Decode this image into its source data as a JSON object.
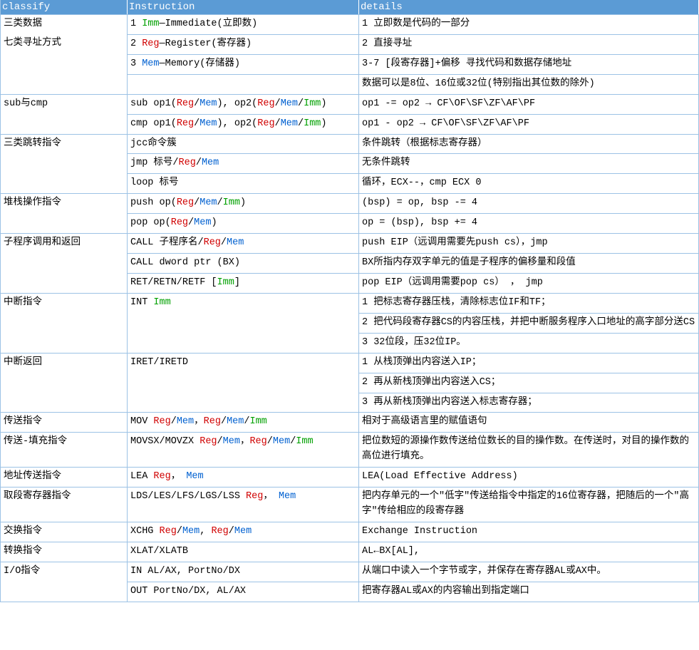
{
  "header": {
    "c1": "classify",
    "c2": "Instruction",
    "c3": "details"
  },
  "categories": {
    "three_data": "三类数据",
    "seven_addr": "七类寻址方式",
    "sub_cmp": "sub与cmp",
    "three_jump": "三类跳转指令",
    "stack_op": "堆栈操作指令",
    "call_ret": "子程序调用和返回",
    "int_instr": "中断指令",
    "int_ret": "中断返回",
    "mov_instr": "传送指令",
    "mov_fill": "传送-填充指令",
    "addr_mov": "地址传送指令",
    "seg_reg": "取段寄存器指令",
    "xchg": "交换指令",
    "xlat": "转换指令",
    "io": "I/O指令"
  },
  "rows": {
    "r1": {
      "n": "1 ",
      "kw": "Imm",
      "txt": "—Immediate(立即数)",
      "d": "1 立即数是代码的一部分"
    },
    "r2": {
      "n": "2 ",
      "kw": "Reg",
      "txt": "—Register(寄存器)",
      "d": "2 直接寻址"
    },
    "r3": {
      "n": "3 ",
      "kw": "Mem",
      "txt": "—Memory(存储器)",
      "d": "3-7 [段寄存器]+偏移 寻找代码和数据存储地址"
    },
    "r4": {
      "d": "数据可以是8位、16位或32位(特别指出其位数的除外)"
    },
    "r5": {
      "p1": "sub op1(",
      "p2": "), op2(",
      "p3": ")",
      "d": "op1 -= op2 → CF\\OF\\SF\\ZF\\AF\\PF"
    },
    "r6": {
      "p1": "cmp op1(",
      "p2": "), op2(",
      "p3": ")",
      "d": "op1 -  op2 → CF\\OF\\SF\\ZF\\AF\\PF"
    },
    "r7": {
      "i": "jcc命令簇",
      "d": "条件跳转（根据标志寄存器）"
    },
    "r8": {
      "p1": "jmp 标号/",
      "d": "无条件跳转"
    },
    "r9": {
      "i": "loop 标号",
      "d": "循环，ECX--，cmp ECX 0"
    },
    "r10": {
      "p1": "push op(",
      "p2": ")",
      "d": "(bsp) = op, bsp -= 4"
    },
    "r11": {
      "p1": "pop op(",
      "p2": ")",
      "d": "op = (bsp), bsp += 4"
    },
    "r12": {
      "p1": "CALL 子程序名/",
      "d": "push EIP（远调用需要先push cs），jmp"
    },
    "r13": {
      "i": "CALL  dword ptr (BX)",
      "d": "BX所指内存双字单元的值是子程序的偏移量和段值"
    },
    "r14": {
      "p1": "RET/RETN/RETF [",
      "p2": "]",
      "kw": "Imm",
      "d": "pop  EIP（远调用需要pop cs） ，  jmp"
    },
    "r15": {
      "p1": "INT ",
      "kw": "Imm",
      "d": "1 把标志寄存器压栈，清除标志位IF和TF；"
    },
    "r16": {
      "d": "2 把代码段寄存器CS的内容压栈，并把中断服务程序入口地址的高字部分送CS"
    },
    "r17": {
      "d": "3 32位段，压32位IP。"
    },
    "r18": {
      "i": "IRET/IRETD",
      "d": "1 从栈顶弹出内容送入IP；"
    },
    "r19": {
      "d": "2 再从新栈顶弹出内容送入CS；"
    },
    "r20": {
      "d": "3 再从新栈顶弹出内容送入标志寄存器；"
    },
    "r21": {
      "p1": "MOV  ",
      "c": "，",
      "d": "相对于高级语言里的赋值语句"
    },
    "r22": {
      "p1": "MOVSX/MOVZX ",
      "c": "，",
      "d": "把位数短的源操作数传送给位数长的目的操作数。在传送时，对目的操作数的高位进行填充。"
    },
    "r23": {
      "p1": "LEA  ",
      "c": "，",
      "d": "LEA(Load Effective Address)"
    },
    "r24": {
      "p1": "LDS/LES/LFS/LGS/LSS  ",
      "c": "，",
      "d": "把内存单元的一个\"低字\"传送给指令中指定的16位寄存器，把随后的一个\"高字\"传给相应的段寄存器"
    },
    "r25": {
      "p1": "XCHG   ",
      "c": ", ",
      "d": "Exchange Instruction"
    },
    "r26": {
      "i": "XLAT/XLATB",
      "d": "AL←BX[AL],"
    },
    "r27": {
      "i": "IN  AL/AX, PortNo/DX",
      "d": "从端口中读入一个字节或字，并保存在寄存器AL或AX中。"
    },
    "r28": {
      "i": "OUT  PortNo/DX, AL/AX",
      "d": "把寄存器AL或AX的内容输出到指定端口"
    }
  },
  "tokens": {
    "Reg": "Reg",
    "Mem": "Mem",
    "Imm": "Imm",
    "slash": "/"
  },
  "colors": {
    "header_bg": "#5b9bd5",
    "border": "#9cc2e5",
    "green": "#00a000",
    "red": "#d00000",
    "blue": "#0060d0"
  }
}
